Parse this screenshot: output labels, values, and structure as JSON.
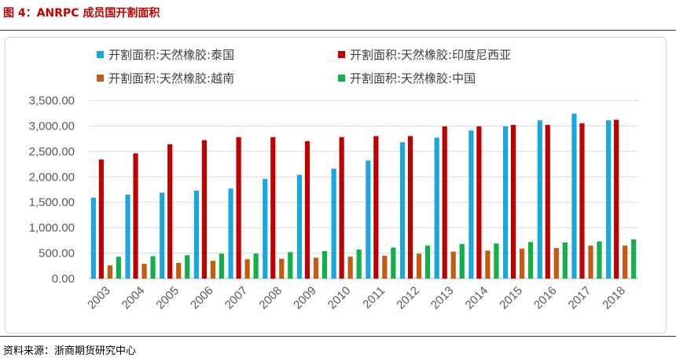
{
  "figure_title": "图 4：ANRPC 成员国开割面积",
  "source": "资料来源：浙商期货研究中心",
  "chart_data": {
    "type": "bar",
    "title": "",
    "xlabel": "",
    "ylabel": "",
    "ylim": [
      0,
      3500
    ],
    "ytick_labels": [
      "0.00",
      "500.00",
      "1,000.00",
      "1,500.00",
      "2,000.00",
      "2,500.00",
      "3,000.00",
      "3,500.00"
    ],
    "yticks": [
      0,
      500,
      1000,
      1500,
      2000,
      2500,
      3000,
      3500
    ],
    "grid": true,
    "legend_position": "top",
    "categories": [
      "2003",
      "2004",
      "2005",
      "2006",
      "2007",
      "2008",
      "2009",
      "2010",
      "2011",
      "2012",
      "2013",
      "2014",
      "2015",
      "2016",
      "2017",
      "2018"
    ],
    "series": [
      {
        "name": "开割面积:天然橡胶:泰国",
        "color": "#1aa7e0",
        "values": [
          1590,
          1650,
          1690,
          1730,
          1770,
          1960,
          2040,
          2160,
          2320,
          2680,
          2770,
          2910,
          2990,
          3110,
          3240,
          3110
        ]
      },
      {
        "name": "开割面积:天然橡胶:印度尼西亚",
        "color": "#c00000",
        "values": [
          2340,
          2460,
          2640,
          2720,
          2780,
          2780,
          2700,
          2780,
          2800,
          2800,
          2990,
          2990,
          3020,
          3020,
          3050,
          3120
        ]
      },
      {
        "name": "开割面积:天然橡胶:越南",
        "color": "#c55a11",
        "values": [
          260,
          290,
          310,
          350,
          380,
          390,
          410,
          430,
          450,
          490,
          530,
          550,
          590,
          600,
          650,
          650
        ]
      },
      {
        "name": "开割面积:天然橡胶:中国",
        "color": "#12b04a",
        "values": [
          430,
          440,
          460,
          490,
          490,
          520,
          540,
          570,
          610,
          650,
          680,
          690,
          720,
          710,
          730,
          770
        ]
      }
    ]
  }
}
